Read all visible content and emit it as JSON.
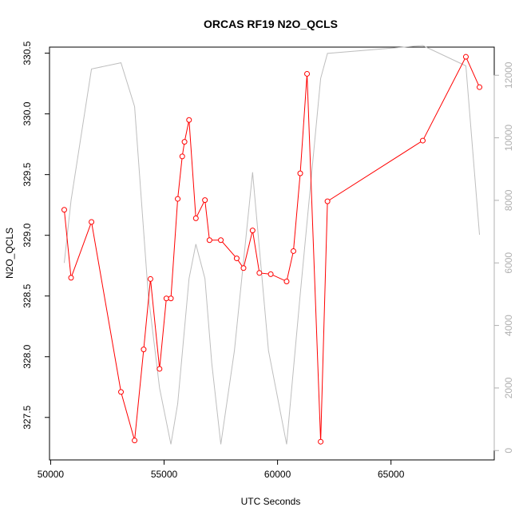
{
  "chart_data": {
    "type": "line",
    "title": "ORCAS RF19 N2O_QCLS",
    "xlabel": "UTC Seconds",
    "ylabel": "N2O_QCLS",
    "xlim": [
      49950,
      69550
    ],
    "ylim": [
      327.15,
      330.55
    ],
    "y2lim": [
      -300,
      12900
    ],
    "x_ticks": [
      50000,
      55000,
      60000,
      65000
    ],
    "x_tick_labels": [
      "50000",
      "55000",
      "60000",
      "65000"
    ],
    "y_ticks": [
      327.5,
      328.0,
      328.5,
      329.0,
      329.5,
      330.0,
      330.5
    ],
    "y_tick_labels": [
      "327.5",
      "328.0",
      "328.5",
      "329.0",
      "329.5",
      "330.0",
      "330.5"
    ],
    "y2_ticks": [
      0,
      2000,
      4000,
      6000,
      8000,
      10000,
      12000
    ],
    "y2_tick_labels": [
      "0",
      "2000",
      "4000",
      "6000",
      "8000",
      "10000",
      "12000"
    ],
    "grid": false,
    "legend": "none",
    "colors": {
      "n2o": "#ff0000",
      "altitude": "#bebebe",
      "axis2": "#b0b0b0"
    },
    "series": [
      {
        "axis": "left",
        "style": "line-with-points",
        "x": [
          50600,
          50900,
          51800,
          53100,
          53700,
          54100,
          54400,
          54800,
          55100,
          55300,
          55600,
          55800,
          55900,
          56100,
          56400,
          56800,
          57000,
          57500,
          58200,
          58500,
          58900,
          59200,
          59700,
          60400,
          60700,
          61000,
          61300,
          61900,
          62200,
          66400,
          68300,
          68900
        ],
        "y": [
          329.21,
          328.65,
          329.11,
          327.71,
          327.31,
          328.06,
          328.64,
          327.9,
          328.48,
          328.48,
          329.3,
          329.65,
          329.77,
          329.95,
          329.14,
          329.29,
          328.96,
          328.96,
          328.81,
          328.73,
          329.04,
          328.69,
          328.68,
          328.62,
          328.87,
          329.51,
          330.33,
          327.3,
          329.28,
          329.78,
          330.47,
          330.22
        ]
      },
      {
        "axis": "right",
        "style": "line",
        "x": [
          50600,
          50900,
          51800,
          53100,
          53700,
          54300,
          54800,
          55300,
          55600,
          56100,
          56400,
          56800,
          57100,
          57500,
          58100,
          58900,
          59600,
          60400,
          61000,
          61900,
          62200,
          66400,
          68300,
          68900
        ],
        "y": [
          6000,
          8000,
          12200,
          12400,
          11000,
          5000,
          2000,
          200,
          1500,
          5500,
          6600,
          5500,
          2800,
          200,
          3200,
          8900,
          3200,
          200,
          5000,
          11900,
          12700,
          12950,
          12300,
          6900
        ]
      }
    ]
  }
}
